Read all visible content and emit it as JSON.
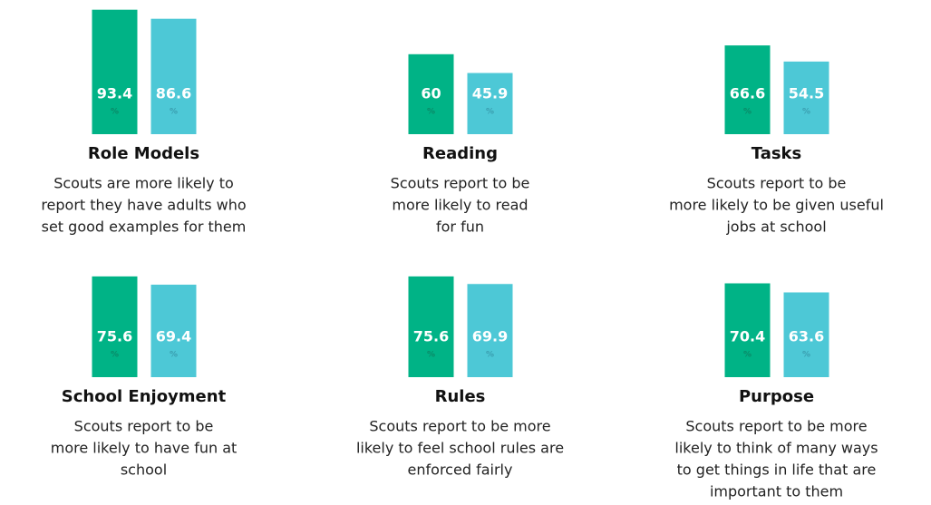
{
  "chart_data": [
    {
      "type": "bar",
      "title": "Role Models",
      "description": [
        "Scouts are more likely to",
        "report they have adults who",
        "set good examples for them"
      ],
      "values": [
        93.4,
        86.6
      ],
      "unit": "%",
      "colors": [
        "#00b386",
        "#4dc8d6"
      ],
      "ylim": [
        0,
        100
      ]
    },
    {
      "type": "bar",
      "title": "Reading",
      "description": [
        "Scouts report to be",
        "more likely to read",
        "for fun"
      ],
      "values": [
        60,
        45.9
      ],
      "unit": "%",
      "colors": [
        "#00b386",
        "#4dc8d6"
      ],
      "ylim": [
        0,
        100
      ]
    },
    {
      "type": "bar",
      "title": "Tasks",
      "description": [
        "Scouts report to be",
        "more likely to be given useful",
        "jobs at school"
      ],
      "values": [
        66.6,
        54.5
      ],
      "unit": "%",
      "colors": [
        "#00b386",
        "#4dc8d6"
      ],
      "ylim": [
        0,
        100
      ]
    },
    {
      "type": "bar",
      "title": "School Enjoyment",
      "description": [
        "Scouts report to be",
        "more likely to have fun at",
        "school"
      ],
      "values": [
        75.6,
        69.4
      ],
      "unit": "%",
      "colors": [
        "#00b386",
        "#4dc8d6"
      ],
      "ylim": [
        0,
        100
      ]
    },
    {
      "type": "bar",
      "title": "Rules",
      "description": [
        "Scouts report to be more",
        "likely to feel school rules are",
        "enforced fairly"
      ],
      "values": [
        75.6,
        69.9
      ],
      "unit": "%",
      "colors": [
        "#00b386",
        "#4dc8d6"
      ],
      "ylim": [
        0,
        100
      ]
    },
    {
      "type": "bar",
      "title": "Purpose",
      "description": [
        "Scouts report to be more",
        "likely to think of many ways",
        "to get things in life that are",
        "important to them"
      ],
      "values": [
        70.4,
        63.6
      ],
      "unit": "%",
      "colors": [
        "#00b386",
        "#4dc8d6"
      ],
      "ylim": [
        0,
        100
      ]
    }
  ]
}
